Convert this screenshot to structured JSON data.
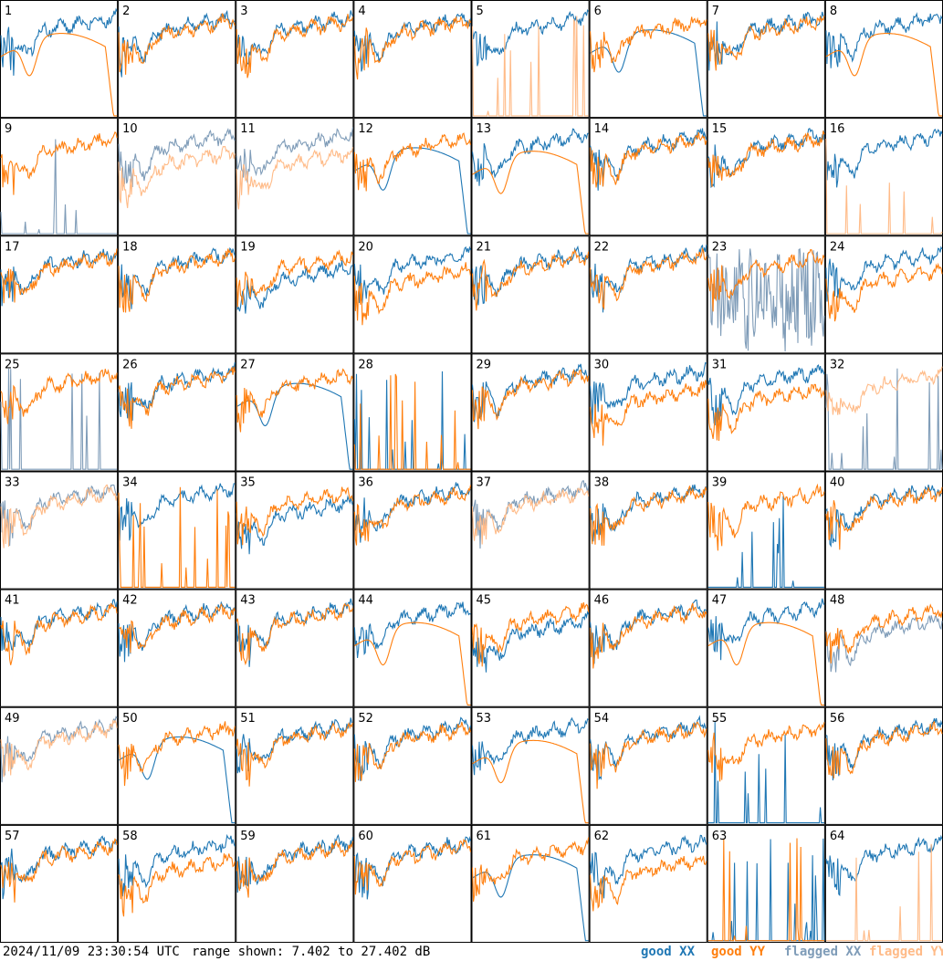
{
  "footer": {
    "timestamp": "2024/11/09 23:30:54 UTC",
    "range_text": "range shown: 7.402 to 27.402 dB"
  },
  "legend": [
    {
      "label": "good XX",
      "color": "#1f77b4"
    },
    {
      "label": "good YY",
      "color": "#ff7f0e"
    },
    {
      "label": "flagged XX",
      "color": "#7f9cb8"
    },
    {
      "label": "flagged YY",
      "color": "#ffbb88"
    }
  ],
  "chart_data": {
    "type": "line",
    "grid_rows": 8,
    "grid_cols": 8,
    "ylim": [
      7.402,
      27.402
    ],
    "y_unit": "dB",
    "panels": [
      {
        "id": "1",
        "xx": "good",
        "yy": "good",
        "xx_shape": "normal",
        "yy_shape": "dip-rolloff"
      },
      {
        "id": "2",
        "xx": "good",
        "yy": "good",
        "xx_shape": "normal",
        "yy_shape": "normal"
      },
      {
        "id": "3",
        "xx": "good",
        "yy": "good",
        "xx_shape": "normal",
        "yy_shape": "normal"
      },
      {
        "id": "4",
        "xx": "good",
        "yy": "good",
        "xx_shape": "normal",
        "yy_shape": "normal"
      },
      {
        "id": "5",
        "xx": "good",
        "yy": "flagged",
        "xx_shape": "normal",
        "yy_shape": "dead"
      },
      {
        "id": "6",
        "xx": "good",
        "yy": "good",
        "xx_shape": "dip-rolloff",
        "yy_shape": "normal"
      },
      {
        "id": "7",
        "xx": "good",
        "yy": "good",
        "xx_shape": "normal",
        "yy_shape": "normal"
      },
      {
        "id": "8",
        "xx": "good",
        "yy": "good",
        "xx_shape": "normal",
        "yy_shape": "dip-rolloff"
      },
      {
        "id": "9",
        "xx": "flagged",
        "yy": "good",
        "xx_shape": "dead",
        "yy_shape": "normal"
      },
      {
        "id": "10",
        "xx": "flagged",
        "yy": "flagged",
        "xx_shape": "normal",
        "yy_shape": "low"
      },
      {
        "id": "11",
        "xx": "flagged",
        "yy": "flagged",
        "xx_shape": "normal",
        "yy_shape": "low"
      },
      {
        "id": "12",
        "xx": "good",
        "yy": "good",
        "xx_shape": "dip-rolloff",
        "yy_shape": "normal"
      },
      {
        "id": "13",
        "xx": "good",
        "yy": "good",
        "xx_shape": "normal",
        "yy_shape": "dip-rolloff"
      },
      {
        "id": "14",
        "xx": "good",
        "yy": "good",
        "xx_shape": "normal",
        "yy_shape": "normal"
      },
      {
        "id": "15",
        "xx": "good",
        "yy": "good",
        "xx_shape": "normal",
        "yy_shape": "normal"
      },
      {
        "id": "16",
        "xx": "good",
        "yy": "flagged",
        "xx_shape": "normal",
        "yy_shape": "dead"
      },
      {
        "id": "17",
        "xx": "good",
        "yy": "good",
        "xx_shape": "normal",
        "yy_shape": "normal"
      },
      {
        "id": "18",
        "xx": "good",
        "yy": "good",
        "xx_shape": "normal",
        "yy_shape": "normal"
      },
      {
        "id": "19",
        "xx": "good",
        "yy": "good",
        "xx_shape": "low",
        "yy_shape": "normal"
      },
      {
        "id": "20",
        "xx": "good",
        "yy": "good",
        "xx_shape": "normal",
        "yy_shape": "low"
      },
      {
        "id": "21",
        "xx": "good",
        "yy": "good",
        "xx_shape": "normal",
        "yy_shape": "normal"
      },
      {
        "id": "22",
        "xx": "good",
        "yy": "good",
        "xx_shape": "normal",
        "yy_shape": "normal"
      },
      {
        "id": "23",
        "xx": "flagged",
        "yy": "good",
        "xx_shape": "noisy",
        "yy_shape": "normal"
      },
      {
        "id": "24",
        "xx": "good",
        "yy": "good",
        "xx_shape": "normal",
        "yy_shape": "low"
      },
      {
        "id": "25",
        "xx": "flagged",
        "yy": "good",
        "xx_shape": "dead",
        "yy_shape": "normal"
      },
      {
        "id": "26",
        "xx": "good",
        "yy": "good",
        "xx_shape": "normal",
        "yy_shape": "normal"
      },
      {
        "id": "27",
        "xx": "good",
        "yy": "good",
        "xx_shape": "dip-rolloff",
        "yy_shape": "normal"
      },
      {
        "id": "28",
        "xx": "good",
        "yy": "good",
        "xx_shape": "dead",
        "yy_shape": "dead"
      },
      {
        "id": "29",
        "xx": "good",
        "yy": "good",
        "xx_shape": "normal",
        "yy_shape": "normal"
      },
      {
        "id": "30",
        "xx": "good",
        "yy": "good",
        "xx_shape": "normal",
        "yy_shape": "low"
      },
      {
        "id": "31",
        "xx": "good",
        "yy": "good",
        "xx_shape": "normal",
        "yy_shape": "low"
      },
      {
        "id": "32",
        "xx": "flagged",
        "yy": "flagged",
        "xx_shape": "dead",
        "yy_shape": "normal"
      },
      {
        "id": "33",
        "xx": "flagged",
        "yy": "flagged",
        "xx_shape": "normal",
        "yy_shape": "normal"
      },
      {
        "id": "34",
        "xx": "good",
        "yy": "good",
        "xx_shape": "normal",
        "yy_shape": "dead"
      },
      {
        "id": "35",
        "xx": "good",
        "yy": "good",
        "xx_shape": "low",
        "yy_shape": "normal"
      },
      {
        "id": "36",
        "xx": "good",
        "yy": "good",
        "xx_shape": "normal",
        "yy_shape": "normal"
      },
      {
        "id": "37",
        "xx": "flagged",
        "yy": "flagged",
        "xx_shape": "normal",
        "yy_shape": "normal"
      },
      {
        "id": "38",
        "xx": "good",
        "yy": "good",
        "xx_shape": "normal",
        "yy_shape": "normal"
      },
      {
        "id": "39",
        "xx": "good",
        "yy": "good",
        "xx_shape": "dead",
        "yy_shape": "normal"
      },
      {
        "id": "40",
        "xx": "good",
        "yy": "good",
        "xx_shape": "normal",
        "yy_shape": "normal"
      },
      {
        "id": "41",
        "xx": "good",
        "yy": "good",
        "xx_shape": "normal",
        "yy_shape": "normal"
      },
      {
        "id": "42",
        "xx": "good",
        "yy": "good",
        "xx_shape": "normal",
        "yy_shape": "normal"
      },
      {
        "id": "43",
        "xx": "good",
        "yy": "good",
        "xx_shape": "normal",
        "yy_shape": "normal"
      },
      {
        "id": "44",
        "xx": "good",
        "yy": "good",
        "xx_shape": "normal",
        "yy_shape": "dip-rolloff"
      },
      {
        "id": "45",
        "xx": "good",
        "yy": "good",
        "xx_shape": "low",
        "yy_shape": "normal"
      },
      {
        "id": "46",
        "xx": "good",
        "yy": "good",
        "xx_shape": "normal",
        "yy_shape": "normal"
      },
      {
        "id": "47",
        "xx": "good",
        "yy": "good",
        "xx_shape": "normal",
        "yy_shape": "dip-rolloff"
      },
      {
        "id": "48",
        "xx": "flagged",
        "yy": "good",
        "xx_shape": "low",
        "yy_shape": "normal"
      },
      {
        "id": "49",
        "xx": "flagged",
        "yy": "flagged",
        "xx_shape": "normal",
        "yy_shape": "normal"
      },
      {
        "id": "50",
        "xx": "good",
        "yy": "good",
        "xx_shape": "dip-rolloff",
        "yy_shape": "normal"
      },
      {
        "id": "51",
        "xx": "good",
        "yy": "good",
        "xx_shape": "normal",
        "yy_shape": "normal"
      },
      {
        "id": "52",
        "xx": "good",
        "yy": "good",
        "xx_shape": "normal",
        "yy_shape": "normal"
      },
      {
        "id": "53",
        "xx": "good",
        "yy": "good",
        "xx_shape": "normal",
        "yy_shape": "dip-rolloff"
      },
      {
        "id": "54",
        "xx": "good",
        "yy": "good",
        "xx_shape": "normal",
        "yy_shape": "normal"
      },
      {
        "id": "55",
        "xx": "good",
        "yy": "good",
        "xx_shape": "dead",
        "yy_shape": "normal"
      },
      {
        "id": "56",
        "xx": "good",
        "yy": "good",
        "xx_shape": "normal",
        "yy_shape": "normal"
      },
      {
        "id": "57",
        "xx": "good",
        "yy": "good",
        "xx_shape": "normal",
        "yy_shape": "normal"
      },
      {
        "id": "58",
        "xx": "good",
        "yy": "good",
        "xx_shape": "normal",
        "yy_shape": "low"
      },
      {
        "id": "59",
        "xx": "good",
        "yy": "good",
        "xx_shape": "normal",
        "yy_shape": "normal"
      },
      {
        "id": "60",
        "xx": "good",
        "yy": "good",
        "xx_shape": "normal",
        "yy_shape": "normal"
      },
      {
        "id": "61",
        "xx": "good",
        "yy": "good",
        "xx_shape": "dip-rolloff",
        "yy_shape": "normal"
      },
      {
        "id": "62",
        "xx": "good",
        "yy": "good",
        "xx_shape": "normal",
        "yy_shape": "low"
      },
      {
        "id": "63",
        "xx": "good",
        "yy": "good",
        "xx_shape": "dead",
        "yy_shape": "dead"
      },
      {
        "id": "64",
        "xx": "good",
        "yy": "flagged",
        "xx_shape": "normal",
        "yy_shape": "dead"
      }
    ]
  }
}
